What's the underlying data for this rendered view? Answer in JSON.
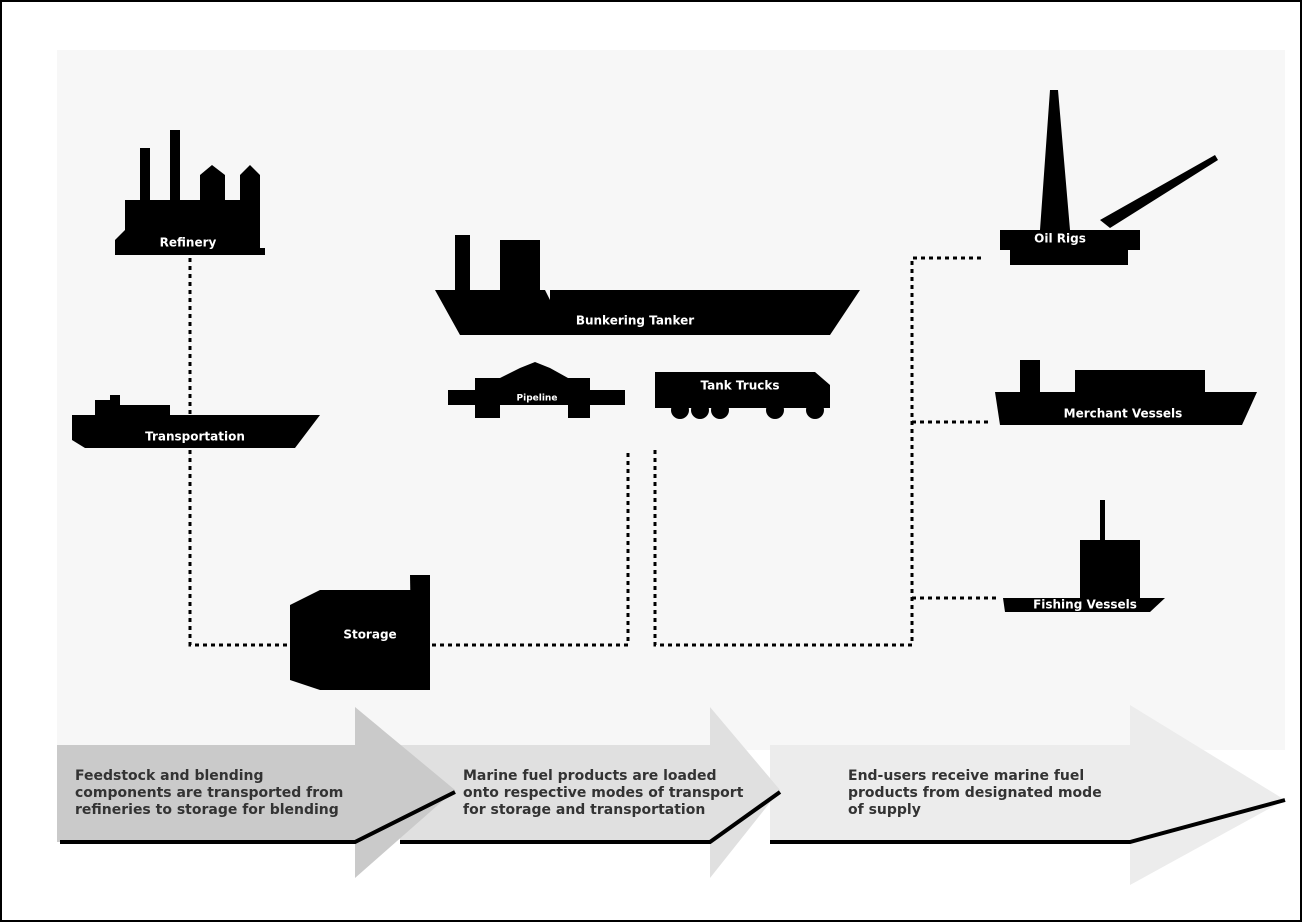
{
  "nodes": [
    {
      "label": "Refinery"
    },
    {
      "label": "Transportation"
    },
    {
      "label": "Storage"
    },
    {
      "label": "Bunkering Tanker"
    },
    {
      "label": "Pipeline"
    },
    {
      "label": "Tank Trucks"
    },
    {
      "label": "Oil Rigs"
    },
    {
      "label": "Merchant Vessels"
    },
    {
      "label": "Fishing Vessels"
    }
  ],
  "steps": [
    {
      "lines": [
        "Feedstock and blending",
        "components are transported from",
        "refineries to storage for blending"
      ]
    },
    {
      "lines": [
        "Marine fuel products are loaded",
        "onto respective modes of transport",
        "for storage and transportation"
      ]
    },
    {
      "lines": [
        "End-users receive marine fuel",
        "products from designated mode",
        "of supply"
      ]
    }
  ]
}
